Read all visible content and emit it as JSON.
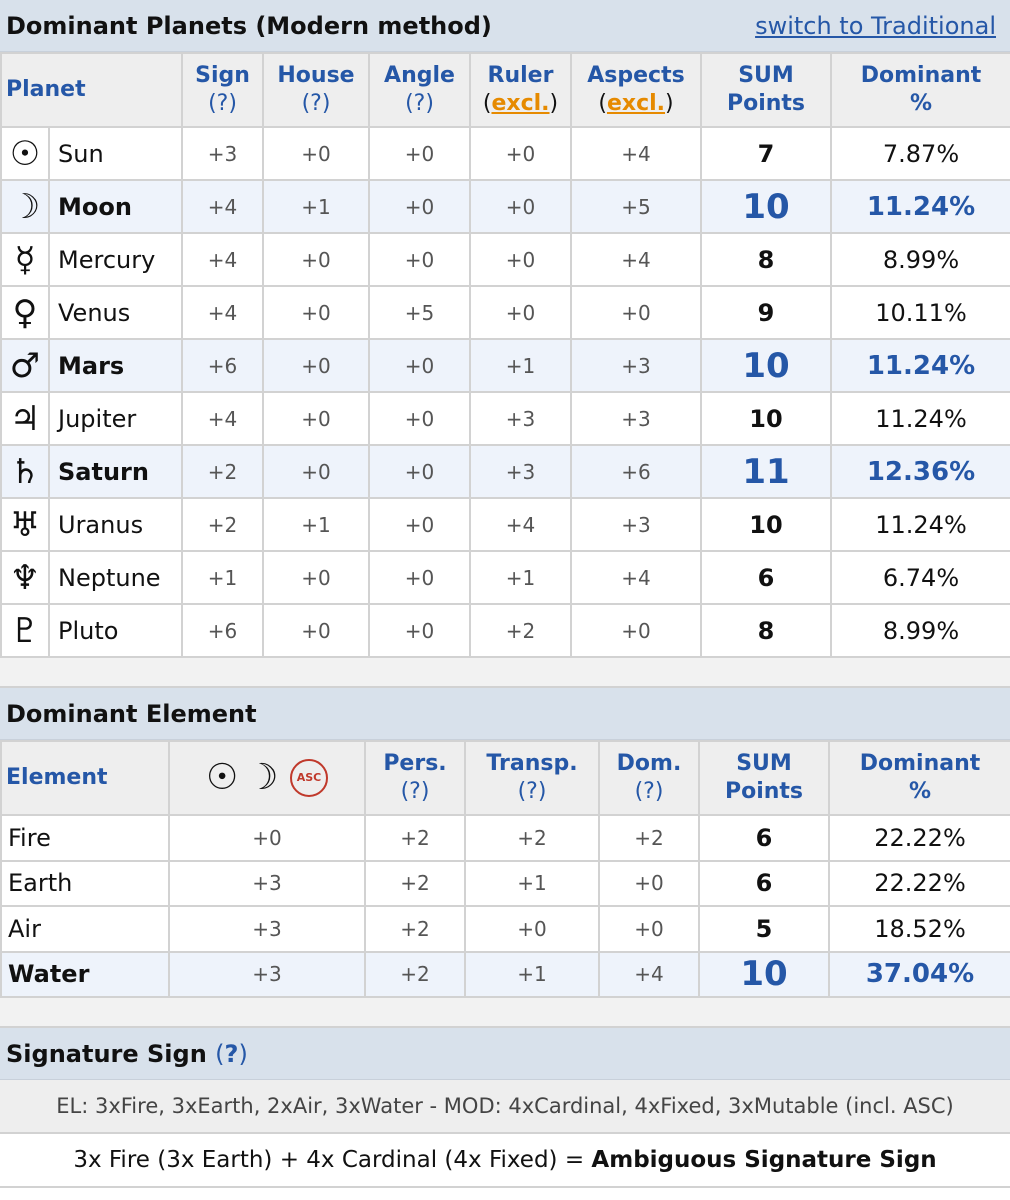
{
  "planets_section": {
    "title": "Dominant Planets (Modern method)",
    "switch_link": "switch to Traditional",
    "headers": {
      "planet": "Planet",
      "sign": "Sign",
      "sign_hint": "(?)",
      "house": "House",
      "house_hint": "(?)",
      "angle": "Angle",
      "angle_hint": "(?)",
      "ruler": "Ruler",
      "ruler_excl": "excl.",
      "aspects": "Aspects",
      "aspects_excl": "excl.",
      "sum_1": "SUM",
      "sum_2": "Points",
      "dominant_1": "Dominant",
      "dominant_2": "%"
    },
    "rows": [
      {
        "glyph": "☉",
        "name": "Sun",
        "sign": "+3",
        "house": "+0",
        "angle": "+0",
        "ruler": "+0",
        "aspects": "+4",
        "sum": "7",
        "pct": "7.87%"
      },
      {
        "glyph": "☽",
        "name": "Moon",
        "sign": "+4",
        "house": "+1",
        "angle": "+0",
        "ruler": "+0",
        "aspects": "+5",
        "sum": "10",
        "pct": "11.24%"
      },
      {
        "glyph": "☿",
        "name": "Mercury",
        "sign": "+4",
        "house": "+0",
        "angle": "+0",
        "ruler": "+0",
        "aspects": "+4",
        "sum": "8",
        "pct": "8.99%"
      },
      {
        "glyph": "♀",
        "name": "Venus",
        "sign": "+4",
        "house": "+0",
        "angle": "+5",
        "ruler": "+0",
        "aspects": "+0",
        "sum": "9",
        "pct": "10.11%"
      },
      {
        "glyph": "♂",
        "name": "Mars",
        "sign": "+6",
        "house": "+0",
        "angle": "+0",
        "ruler": "+1",
        "aspects": "+3",
        "sum": "10",
        "pct": "11.24%"
      },
      {
        "glyph": "♃",
        "name": "Jupiter",
        "sign": "+4",
        "house": "+0",
        "angle": "+0",
        "ruler": "+3",
        "aspects": "+3",
        "sum": "10",
        "pct": "11.24%"
      },
      {
        "glyph": "♄",
        "name": "Saturn",
        "sign": "+2",
        "house": "+0",
        "angle": "+0",
        "ruler": "+3",
        "aspects": "+6",
        "sum": "11",
        "pct": "12.36%"
      },
      {
        "glyph": "♅",
        "name": "Uranus",
        "sign": "+2",
        "house": "+1",
        "angle": "+0",
        "ruler": "+4",
        "aspects": "+3",
        "sum": "10",
        "pct": "11.24%"
      },
      {
        "glyph": "♆",
        "name": "Neptune",
        "sign": "+1",
        "house": "+0",
        "angle": "+0",
        "ruler": "+1",
        "aspects": "+4",
        "sum": "6",
        "pct": "6.74%"
      },
      {
        "glyph": "♇",
        "name": "Pluto",
        "sign": "+6",
        "house": "+0",
        "angle": "+0",
        "ruler": "+2",
        "aspects": "+0",
        "sum": "8",
        "pct": "8.99%"
      }
    ]
  },
  "element_section": {
    "title": "Dominant Element",
    "headers": {
      "element": "Element",
      "sun_glyph": "☉",
      "moon_glyph": "☽",
      "asc_badge": "ASC",
      "pers": "Pers.",
      "pers_hint": "(?)",
      "transp": "Transp.",
      "transp_hint": "(?)",
      "dom": "Dom.",
      "dom_hint": "(?)",
      "sum_1": "SUM",
      "sum_2": "Points",
      "dominant_1": "Dominant",
      "dominant_2": "%"
    },
    "rows": [
      {
        "name": "Fire",
        "smasc": "+0",
        "pers": "+2",
        "transp": "+2",
        "dom": "+2",
        "sum": "6",
        "pct": "22.22%"
      },
      {
        "name": "Earth",
        "smasc": "+3",
        "pers": "+2",
        "transp": "+1",
        "dom": "+0",
        "sum": "6",
        "pct": "22.22%"
      },
      {
        "name": "Air",
        "smasc": "+3",
        "pers": "+2",
        "transp": "+0",
        "dom": "+0",
        "sum": "5",
        "pct": "18.52%"
      },
      {
        "name": "Water",
        "smasc": "+3",
        "pers": "+2",
        "transp": "+1",
        "dom": "+4",
        "sum": "10",
        "pct": "37.04%"
      }
    ]
  },
  "signature_section": {
    "title": "Signature Sign",
    "hint_open": "(",
    "hint_q": "?",
    "hint_close": ")",
    "el_line": "EL: 3xFire, 3xEarth, 2xAir, 3xWater -  MOD: 4xCardinal, 4xFixed, 3xMutable (incl. ASC)",
    "result_text": "3x Fire (3x Earth) + 4x Cardinal (4x Fixed) = ",
    "result_bold": "Ambiguous Signature Sign"
  },
  "colors": {
    "header_bg": "#d8e1eb",
    "accent_blue": "#2557a7",
    "highlight_row": "#eef3fb",
    "excl_orange": "#e68a00",
    "asc_red": "#c0392b"
  }
}
